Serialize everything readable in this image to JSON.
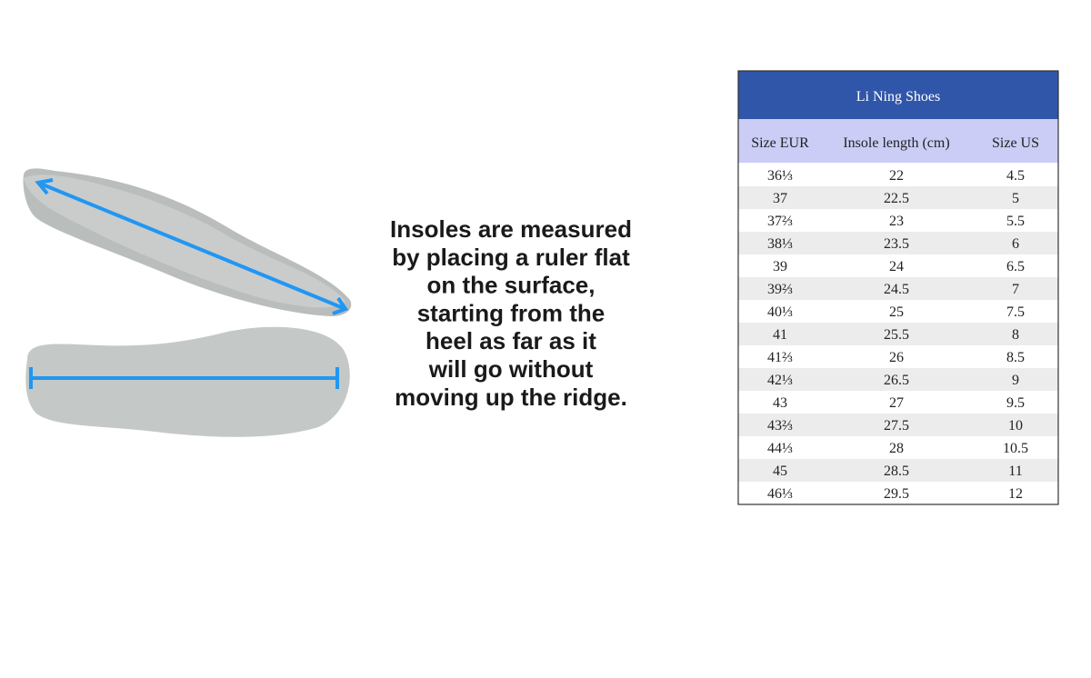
{
  "instructions": {
    "lines": [
      "Insoles are measured",
      "by placing a ruler flat",
      "on the surface,",
      "starting from the",
      "heel as far as it",
      "will go without",
      "moving up the ridge."
    ]
  },
  "table": {
    "title": "Li Ning Shoes",
    "headers": [
      "Size EUR",
      "Insole length (cm)",
      "Size US"
    ],
    "rows": [
      [
        "36⅓",
        22,
        4.5
      ],
      [
        "37",
        22.5,
        5
      ],
      [
        "37⅔",
        23,
        5.5
      ],
      [
        "38⅓",
        23.5,
        6
      ],
      [
        "39",
        24,
        6.5
      ],
      [
        "39⅔",
        24.5,
        7
      ],
      [
        "40⅓",
        25,
        7.5
      ],
      [
        "41",
        25.5,
        8
      ],
      [
        "41⅔",
        26,
        8.5
      ],
      [
        "42⅓",
        26.5,
        9
      ],
      [
        "43",
        27,
        9.5
      ],
      [
        "43⅔",
        27.5,
        10
      ],
      [
        "44⅓",
        28,
        10.5
      ],
      [
        "45",
        28.5,
        11
      ],
      [
        "46⅓",
        29.5,
        12
      ]
    ]
  }
}
